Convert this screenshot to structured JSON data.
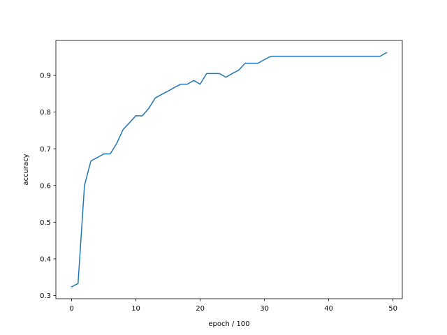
{
  "chart_data": {
    "type": "line",
    "title": "",
    "xlabel": "epoch / 100",
    "ylabel": "accuracy",
    "xlim": [
      -2.45,
      51.45
    ],
    "ylim": [
      0.2915,
      0.995
    ],
    "xticks": [
      0,
      10,
      20,
      30,
      40,
      50
    ],
    "yticks": [
      0.3,
      0.4,
      0.5,
      0.6,
      0.7,
      0.8,
      0.9
    ],
    "xtick_labels": [
      "0",
      "10",
      "20",
      "30",
      "40",
      "50"
    ],
    "ytick_labels": [
      "0.3",
      "0.4",
      "0.5",
      "0.6",
      "0.7",
      "0.8",
      "0.9"
    ],
    "grid": false,
    "series": [
      {
        "color": "#1f77b4",
        "x": [
          0,
          1,
          2,
          3,
          4,
          5,
          6,
          7,
          8,
          9,
          10,
          11,
          12,
          13,
          14,
          15,
          16,
          17,
          18,
          19,
          20,
          21,
          22,
          23,
          24,
          25,
          26,
          27,
          28,
          29,
          30,
          31,
          32,
          33,
          34,
          35,
          36,
          37,
          38,
          39,
          40,
          41,
          42,
          43,
          44,
          45,
          46,
          47,
          48,
          49
        ],
        "y": [
          0.324,
          0.333,
          0.6,
          0.667,
          0.676,
          0.686,
          0.686,
          0.714,
          0.752,
          0.771,
          0.79,
          0.79,
          0.81,
          0.838,
          0.848,
          0.857,
          0.867,
          0.876,
          0.876,
          0.886,
          0.876,
          0.905,
          0.905,
          0.905,
          0.895,
          0.905,
          0.914,
          0.933,
          0.933,
          0.933,
          0.943,
          0.952,
          0.952,
          0.952,
          0.952,
          0.952,
          0.952,
          0.952,
          0.952,
          0.952,
          0.952,
          0.952,
          0.952,
          0.952,
          0.952,
          0.952,
          0.952,
          0.952,
          0.952,
          0.962
        ]
      }
    ]
  }
}
